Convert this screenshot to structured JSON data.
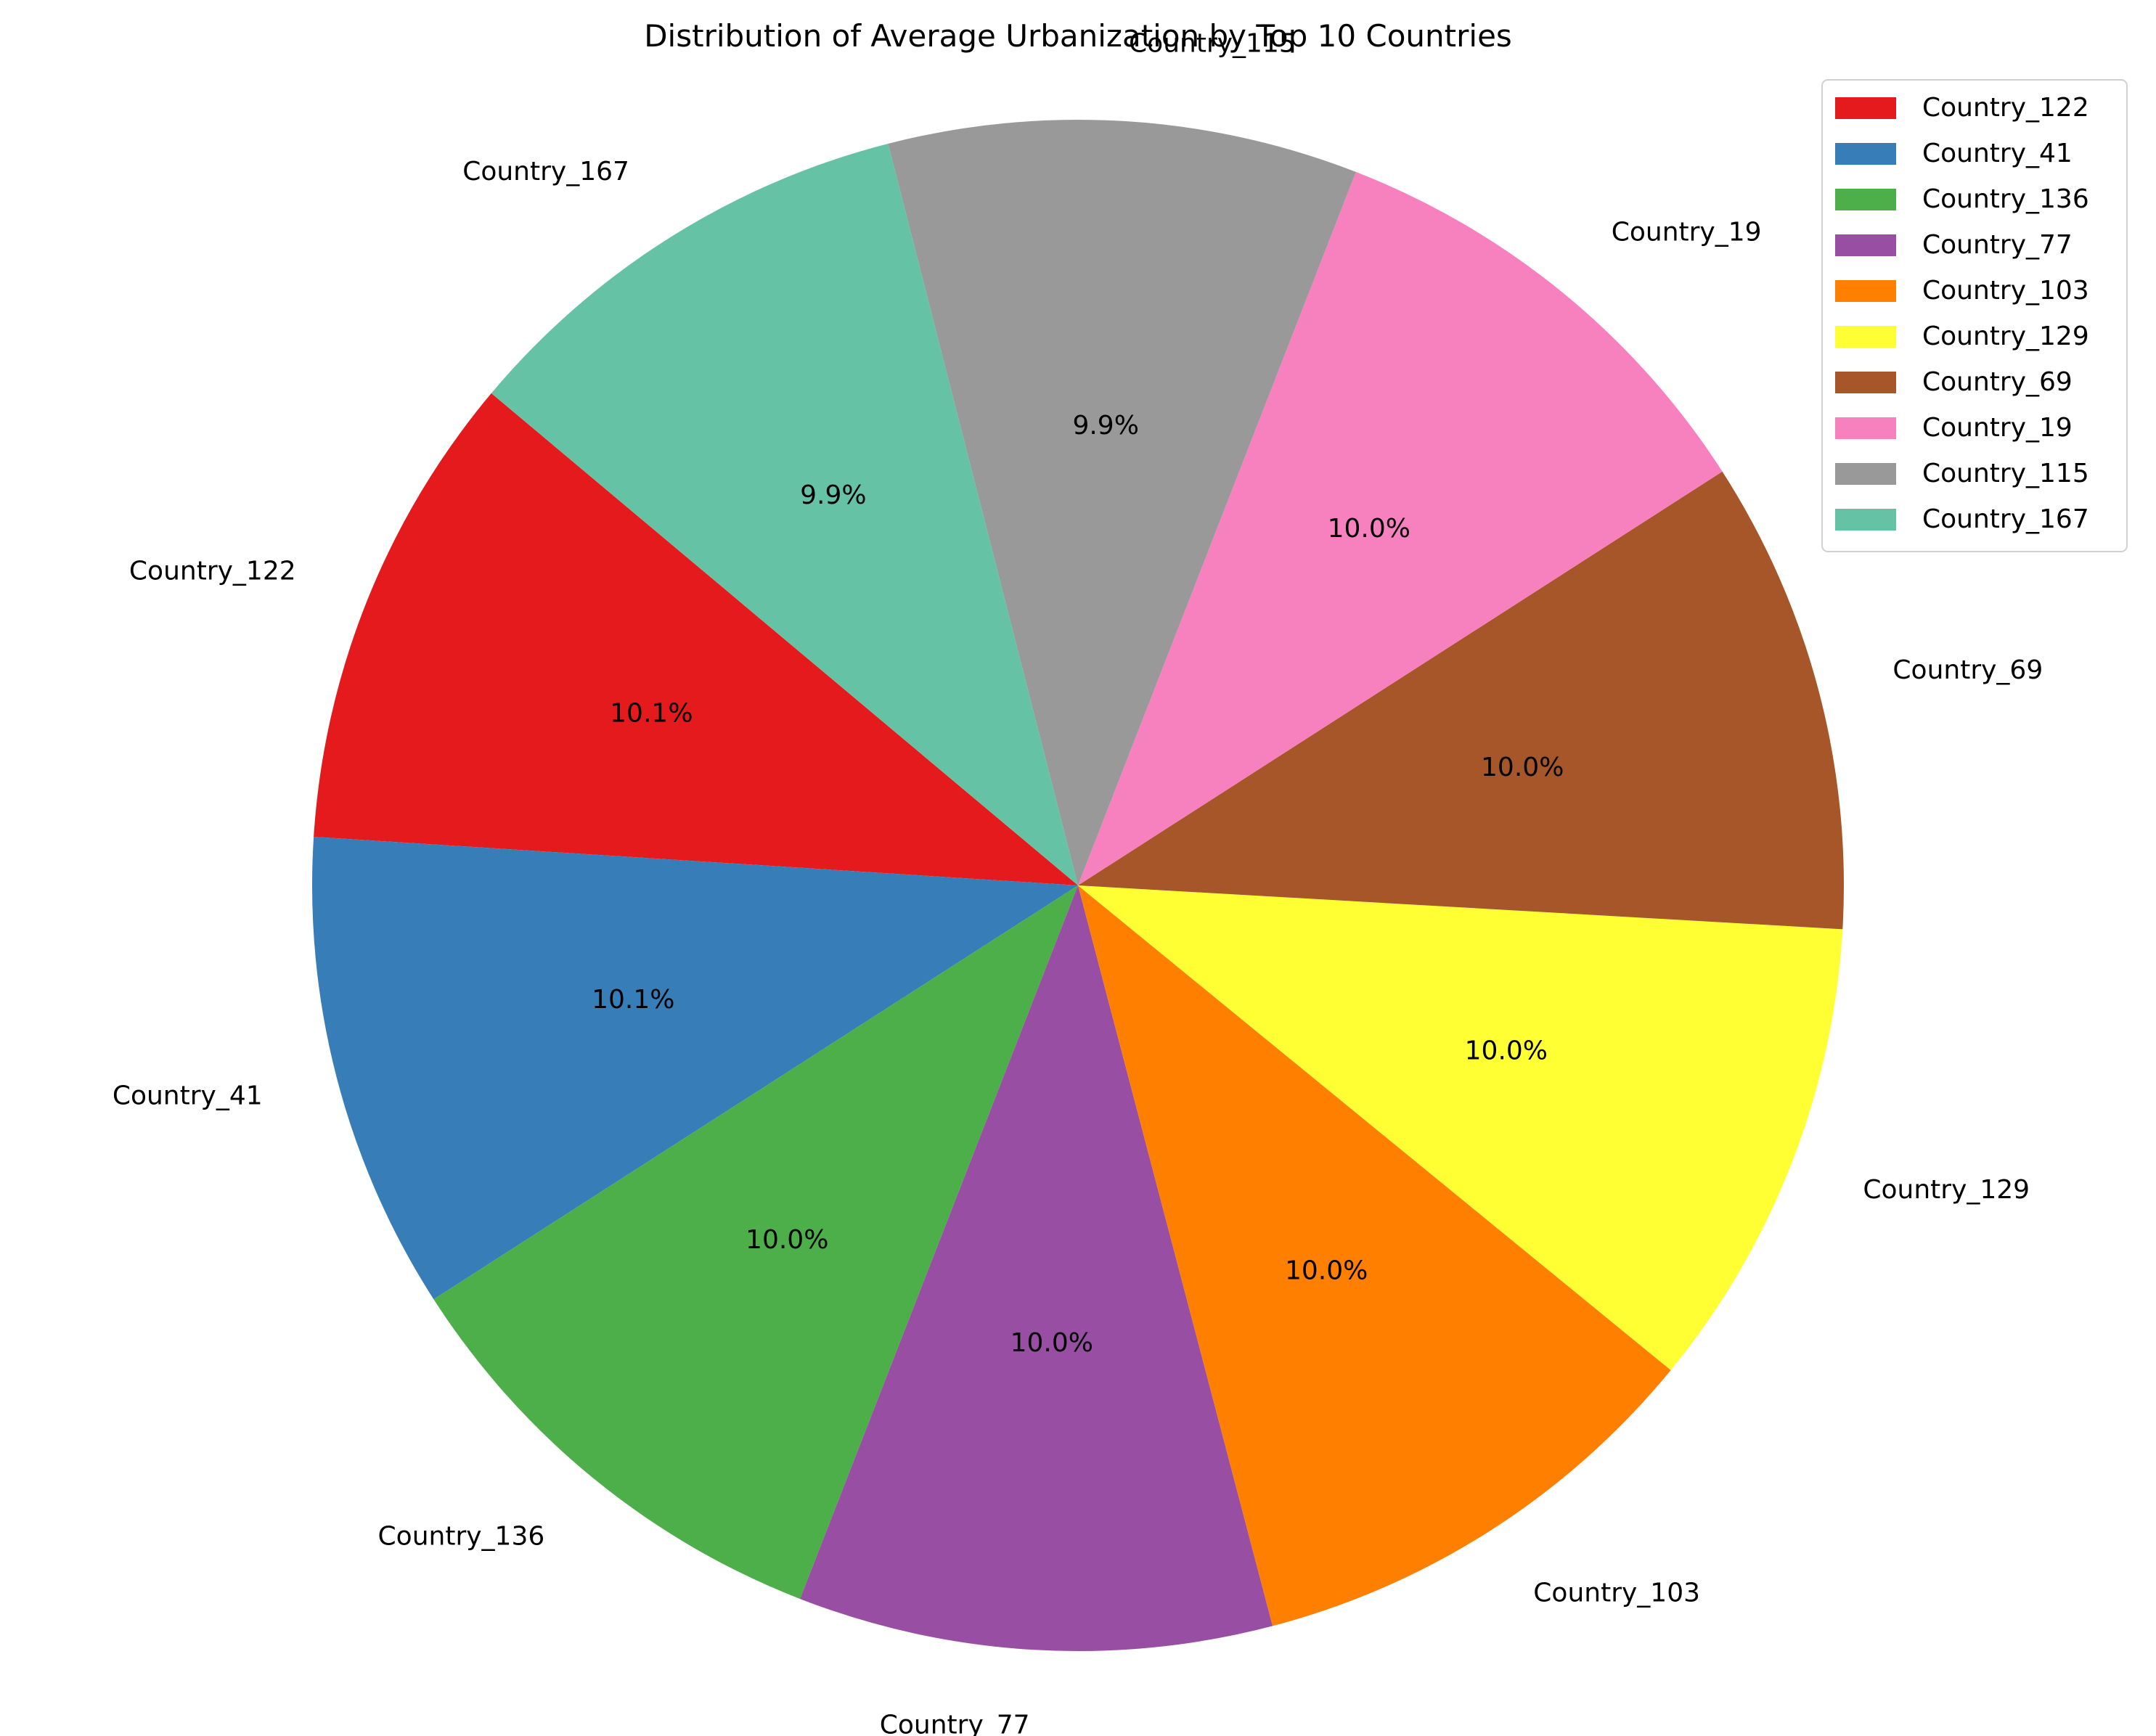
{
  "chart_data": {
    "type": "pie",
    "title": "Distribution of Average Urbanization by Top 10 Countries",
    "start_angle_deg": 140,
    "direction": "counterclockwise",
    "legend_position": "top-right",
    "slices": [
      {
        "label": "Country_122",
        "percent_label": "10.1%",
        "value": 10.1,
        "color": "#e41a1c"
      },
      {
        "label": "Country_41",
        "percent_label": "10.1%",
        "value": 10.1,
        "color": "#377eb8"
      },
      {
        "label": "Country_136",
        "percent_label": "10.0%",
        "value": 10.0,
        "color": "#4daf4a"
      },
      {
        "label": "Country_77",
        "percent_label": "10.0%",
        "value": 10.0,
        "color": "#984ea3"
      },
      {
        "label": "Country_103",
        "percent_label": "10.0%",
        "value": 10.0,
        "color": "#ff7f00"
      },
      {
        "label": "Country_129",
        "percent_label": "10.0%",
        "value": 10.0,
        "color": "#ffff33"
      },
      {
        "label": "Country_69",
        "percent_label": "10.0%",
        "value": 10.0,
        "color": "#a65628"
      },
      {
        "label": "Country_19",
        "percent_label": "10.0%",
        "value": 10.0,
        "color": "#f781bf"
      },
      {
        "label": "Country_115",
        "percent_label": "9.9%",
        "value": 9.9,
        "color": "#999999"
      },
      {
        "label": "Country_167",
        "percent_label": "9.9%",
        "value": 9.9,
        "color": "#66c2a5"
      }
    ]
  }
}
